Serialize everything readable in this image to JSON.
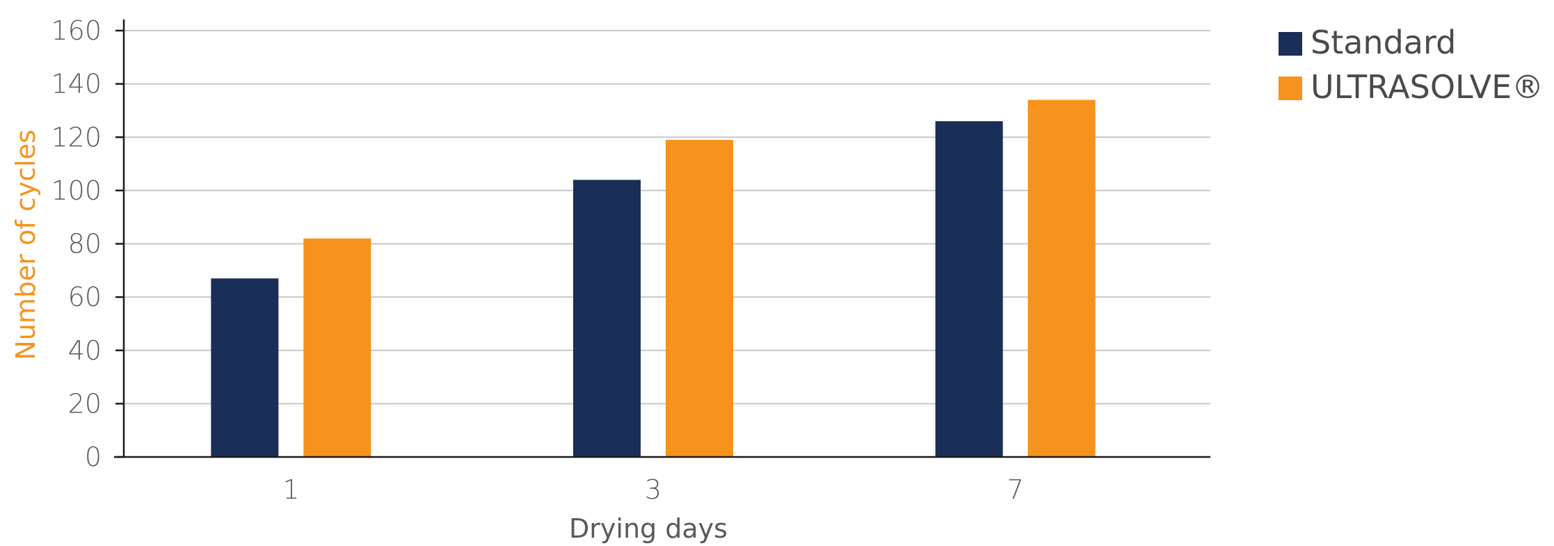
{
  "chart_data": {
    "type": "bar",
    "categories": [
      "1",
      "3",
      "7"
    ],
    "series": [
      {
        "name": "Standard",
        "values": [
          67,
          104,
          126
        ],
        "color": "#1a2f57"
      },
      {
        "name": "ULTRASOLVE® H",
        "values": [
          82,
          119,
          134
        ],
        "color": "#f5931e"
      }
    ],
    "xlabel": "Drying days",
    "ylabel": "Number of cycles",
    "ylabel_color": "#f5931e",
    "ylim": [
      0,
      160
    ],
    "yticks": [
      0,
      20,
      40,
      60,
      80,
      100,
      120,
      140,
      160
    ],
    "grid": true,
    "legend_position": "top-right"
  }
}
